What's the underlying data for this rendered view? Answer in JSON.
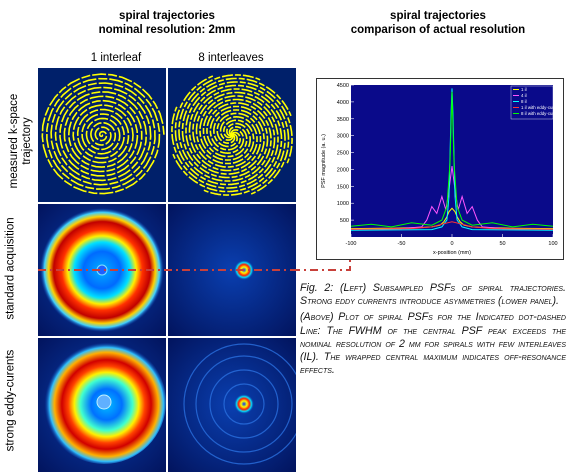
{
  "left_header": {
    "line1": "spiral trajectories",
    "line2": "nominal resolution: 2mm"
  },
  "right_header": {
    "line1": "spiral trajectories",
    "line2": "comparison of actual resolution"
  },
  "column_labels": [
    "1 interleaf",
    "8 interleaves"
  ],
  "row_labels": [
    "measured k-space",
    "trajectory",
    "standard acquisition",
    "strong eddy-curents"
  ],
  "caption": {
    "fig_label": "Fig. 2:",
    "para1": "(Left) Subsampled PSFs of spiral trajectories. Strong eddy currents introduce asymmetries (lower panel).",
    "para2": "(Above) Plot of spiral PSFs for the Indicated dot-dashed Line: The FWHM of the central PSF peak exceeds the nominal resolution of 2 mm for spirals with few interleaves (IL). The wrapped central maximum indicates off-resonance effects."
  },
  "colors": {
    "trajectory": "#ffff00",
    "panel_bg": "#001a6e",
    "plot_bg": "#0a0a8a",
    "dashed_line": "#c8403a"
  },
  "chart_data": {
    "type": "line",
    "xlabel": "x-position (mm)",
    "ylabel": "PSF magnitude (a. u.)",
    "xlim": [
      -100,
      100
    ],
    "ylim": [
      0,
      4500
    ],
    "xticks": [
      -100,
      -50,
      0,
      50,
      100
    ],
    "yticks": [
      500,
      1000,
      1500,
      2000,
      2500,
      3000,
      3500,
      4000,
      4500
    ],
    "legend_position": "top-right",
    "series": [
      {
        "name": "1 il",
        "color": "#ffff00",
        "x": [
          -100,
          -60,
          -30,
          -20,
          -12,
          -8,
          -5,
          -3,
          0,
          3,
          5,
          8,
          12,
          20,
          30,
          60,
          100
        ],
        "y": [
          250,
          260,
          280,
          300,
          350,
          450,
          600,
          750,
          850,
          750,
          600,
          450,
          350,
          300,
          280,
          260,
          250
        ]
      },
      {
        "name": "4 il",
        "color": "#ff55ff",
        "x": [
          -100,
          -50,
          -30,
          -25,
          -20,
          -15,
          -10,
          -6,
          -3,
          0,
          3,
          6,
          10,
          15,
          20,
          25,
          30,
          50,
          100
        ],
        "y": [
          220,
          250,
          300,
          500,
          900,
          700,
          1200,
          800,
          1400,
          2100,
          1400,
          800,
          1200,
          700,
          900,
          500,
          300,
          250,
          220
        ]
      },
      {
        "name": "8 il",
        "color": "#00ffff",
        "x": [
          -100,
          -20,
          -10,
          -5,
          -3,
          -1,
          0,
          1,
          3,
          5,
          10,
          20,
          100
        ],
        "y": [
          200,
          220,
          300,
          500,
          1200,
          3600,
          4400,
          3600,
          1200,
          500,
          300,
          220,
          200
        ]
      },
      {
        "name": "1 il with eddy-current",
        "color": "#ff3333",
        "x": [
          -100,
          -40,
          -20,
          -10,
          0,
          10,
          20,
          40,
          100
        ],
        "y": [
          230,
          250,
          300,
          380,
          450,
          380,
          300,
          250,
          230
        ]
      },
      {
        "name": "8 il with eddy-current",
        "color": "#00ff00",
        "x": [
          -100,
          -80,
          -60,
          -40,
          -20,
          -10,
          -5,
          -2,
          0,
          2,
          5,
          10,
          20,
          40,
          60,
          80,
          100
        ],
        "y": [
          320,
          380,
          300,
          420,
          350,
          500,
          900,
          2200,
          4300,
          2200,
          900,
          500,
          350,
          420,
          300,
          380,
          320
        ]
      }
    ]
  }
}
